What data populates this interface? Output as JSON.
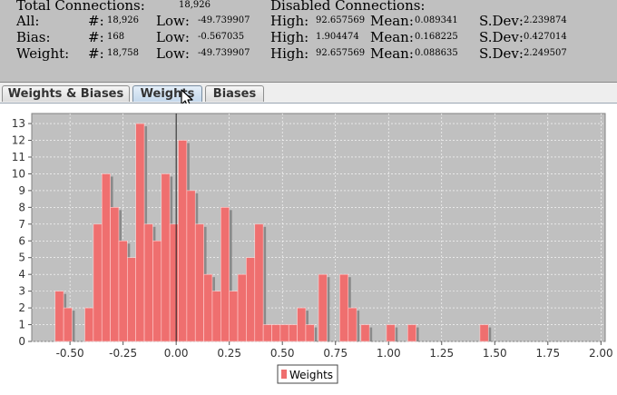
{
  "stats": {
    "total_label": "Total Connections:",
    "total_value": "18,926",
    "disabled_label": "Disabled Connections:",
    "rows": [
      {
        "name": "All:",
        "count_label": "#:",
        "count": "18,926",
        "low_label": "Low:",
        "low": "-49.739907",
        "high_label": "High:",
        "high": "92.657569",
        "mean_label": "Mean:",
        "mean": "0.089341",
        "sdev_label": "S.Dev:",
        "sdev": "2.239874"
      },
      {
        "name": "Bias:",
        "count_label": "#:",
        "count": "168",
        "low_label": "Low:",
        "low": "-0.567035",
        "high_label": "High:",
        "high": "1.904474",
        "mean_label": "Mean:",
        "mean": "0.168225",
        "sdev_label": "S.Dev:",
        "sdev": "0.427014"
      },
      {
        "name": "Weight:",
        "count_label": "#:",
        "count": "18,758",
        "low_label": "Low:",
        "low": "-49.739907",
        "high_label": "High:",
        "high": "92.657569",
        "mean_label": "Mean:",
        "mean": "0.088635",
        "sdev_label": "S.Dev:",
        "sdev": "2.249507"
      }
    ]
  },
  "tabs": [
    {
      "label": "Weights & Biases",
      "active": false
    },
    {
      "label": "Weights",
      "active": true
    },
    {
      "label": "Biases",
      "active": false
    }
  ],
  "colors": {
    "bar": "#ef6f6f",
    "bar_edge": "#ffd2d2",
    "shadow": "#8a8a8a",
    "plot_bg": "#c0c0c0",
    "grid": "#ffffff"
  },
  "chart_data": {
    "type": "bar",
    "title": "",
    "xlabel": "",
    "ylabel": "",
    "xlim": [
      -0.68,
      2.02
    ],
    "ylim": [
      0,
      13.6
    ],
    "bin_width": 0.04,
    "xticks": [
      "-0.50",
      "-0.25",
      "0.00",
      "0.25",
      "0.50",
      "0.75",
      "1.00",
      "1.25",
      "1.50",
      "1.75",
      "2.00"
    ],
    "yticks": [
      "0",
      "1",
      "2",
      "3",
      "4",
      "5",
      "6",
      "7",
      "8",
      "9",
      "10",
      "11",
      "12",
      "13"
    ],
    "grid": true,
    "legend": "bottom-center",
    "series": [
      {
        "name": "Weights",
        "bins": [
          {
            "x": -0.55,
            "y": 3
          },
          {
            "x": -0.51,
            "y": 2
          },
          {
            "x": -0.41,
            "y": 2
          },
          {
            "x": -0.37,
            "y": 7
          },
          {
            "x": -0.33,
            "y": 10
          },
          {
            "x": -0.29,
            "y": 8
          },
          {
            "x": -0.25,
            "y": 6
          },
          {
            "x": -0.21,
            "y": 5
          },
          {
            "x": -0.17,
            "y": 13
          },
          {
            "x": -0.13,
            "y": 7
          },
          {
            "x": -0.09,
            "y": 6
          },
          {
            "x": -0.05,
            "y": 10
          },
          {
            "x": -0.01,
            "y": 7
          },
          {
            "x": 0.03,
            "y": 12
          },
          {
            "x": 0.07,
            "y": 9
          },
          {
            "x": 0.11,
            "y": 7
          },
          {
            "x": 0.15,
            "y": 4
          },
          {
            "x": 0.19,
            "y": 3
          },
          {
            "x": 0.23,
            "y": 8
          },
          {
            "x": 0.27,
            "y": 3
          },
          {
            "x": 0.31,
            "y": 4
          },
          {
            "x": 0.35,
            "y": 5
          },
          {
            "x": 0.39,
            "y": 7
          },
          {
            "x": 0.43,
            "y": 1
          },
          {
            "x": 0.47,
            "y": 1
          },
          {
            "x": 0.51,
            "y": 1
          },
          {
            "x": 0.55,
            "y": 1
          },
          {
            "x": 0.59,
            "y": 2
          },
          {
            "x": 0.63,
            "y": 1
          },
          {
            "x": 0.69,
            "y": 4
          },
          {
            "x": 0.79,
            "y": 4
          },
          {
            "x": 0.83,
            "y": 2
          },
          {
            "x": 0.89,
            "y": 1
          },
          {
            "x": 1.01,
            "y": 1
          },
          {
            "x": 1.11,
            "y": 1
          },
          {
            "x": 1.45,
            "y": 1
          }
        ]
      }
    ]
  }
}
